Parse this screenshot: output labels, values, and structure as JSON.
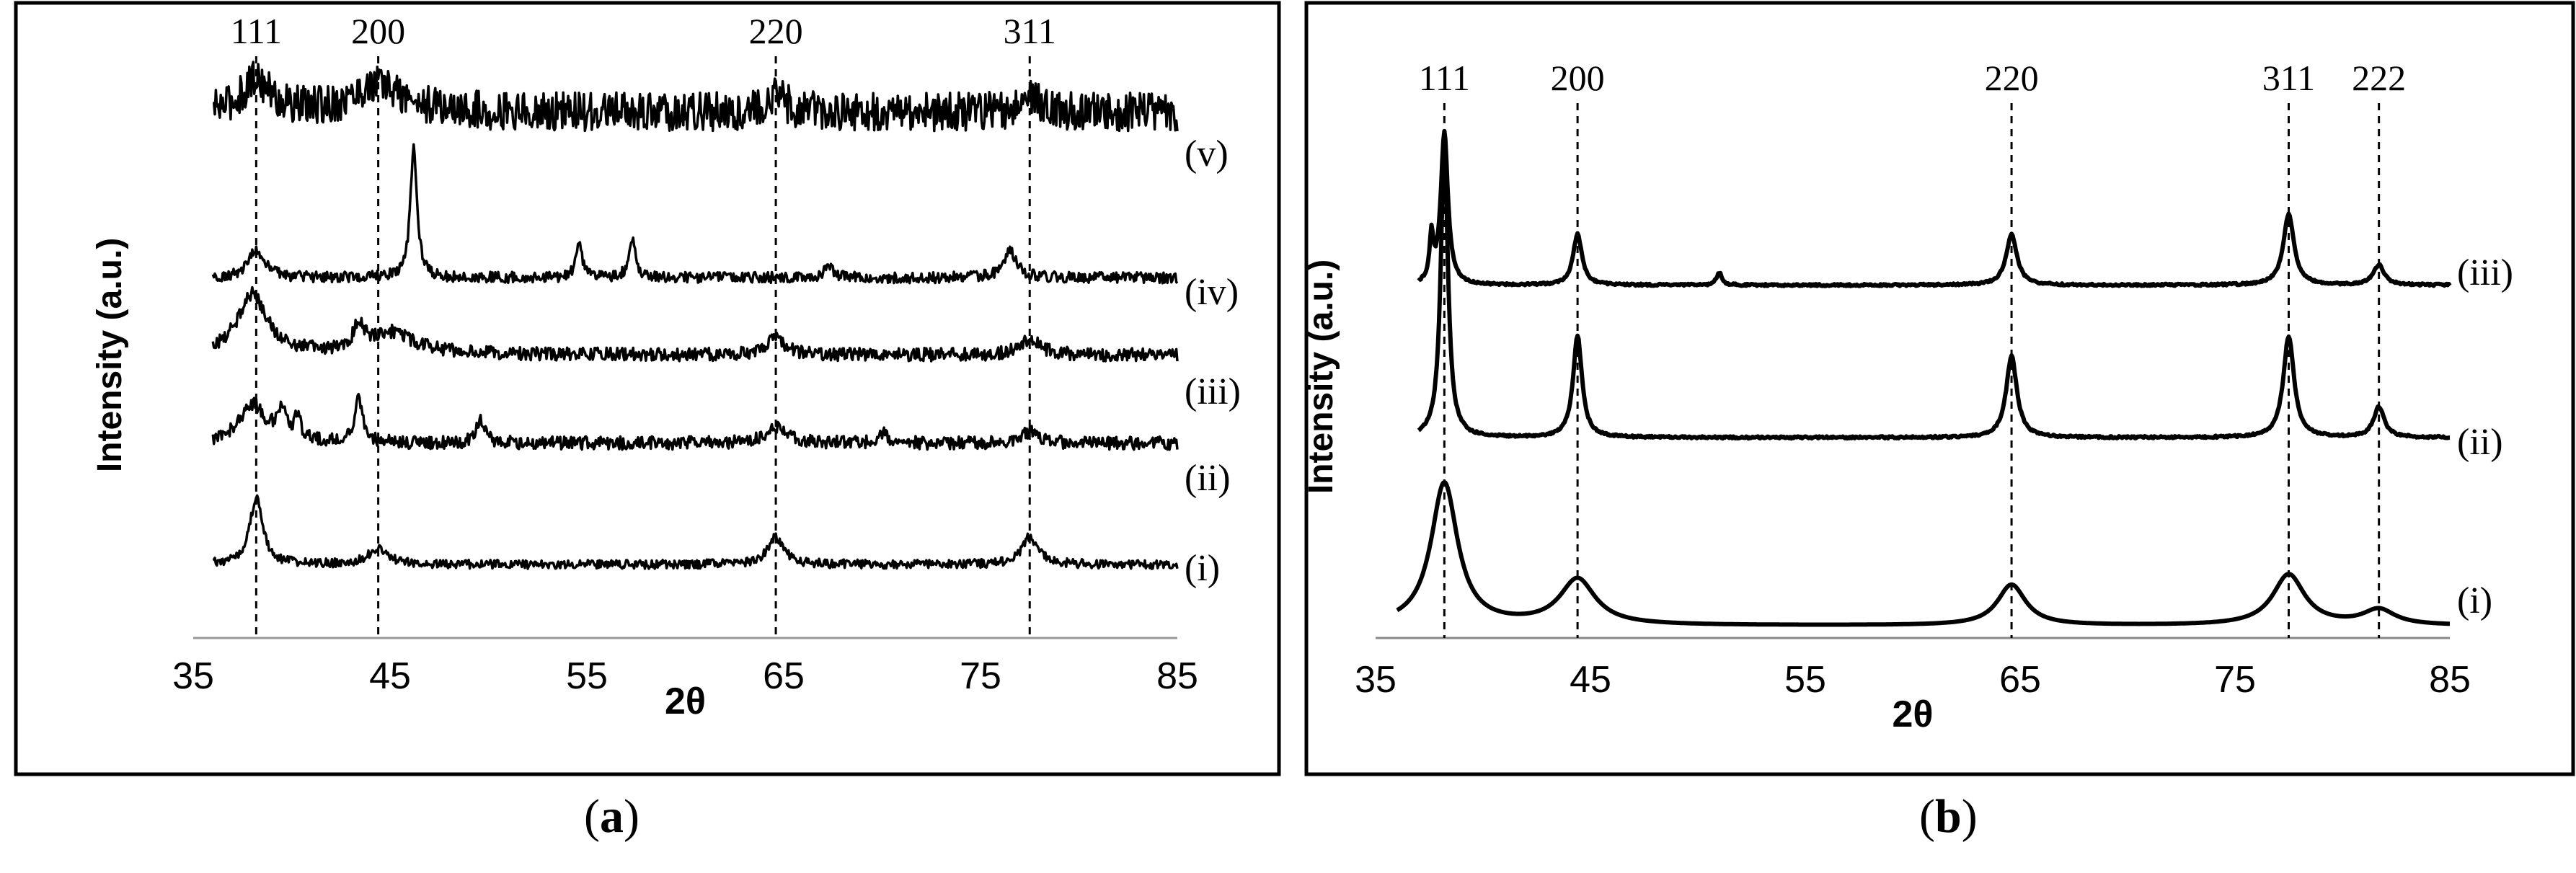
{
  "panels": [
    {
      "id": "a",
      "caption": {
        "open": "(",
        "letter": "a",
        "close": ")"
      },
      "chart_data": {
        "type": "line",
        "title": "",
        "xlabel": "2θ",
        "ylabel": "Intensity (a.u.)",
        "xlim": [
          35,
          85
        ],
        "xticks": [
          "35",
          "45",
          "55",
          "65",
          "75",
          "85"
        ],
        "reference_lines": [
          {
            "label": "111",
            "x": 38.2
          },
          {
            "label": "200",
            "x": 44.4
          },
          {
            "label": "220",
            "x": 64.6
          },
          {
            "label": "311",
            "x": 77.5
          }
        ],
        "series": [
          {
            "name": "(v)",
            "baseline": 0.94,
            "noise": 0.035,
            "x_start": 36.0,
            "peaks": [
              {
                "x": 38.2,
                "h": 0.06,
                "w": 0.8
              },
              {
                "x": 44.4,
                "h": 0.05,
                "w": 1.5
              },
              {
                "x": 64.6,
                "h": 0.03,
                "w": 0.6
              },
              {
                "x": 77.5,
                "h": 0.03,
                "w": 0.6
              }
            ]
          },
          {
            "name": "(iv)",
            "baseline": 0.64,
            "noise": 0.01,
            "x_start": 36.0,
            "peaks": [
              {
                "x": 38.2,
                "h": 0.05,
                "w": 0.5
              },
              {
                "x": 46.2,
                "h": 0.24,
                "w": 0.2
              },
              {
                "x": 54.6,
                "h": 0.06,
                "w": 0.2
              },
              {
                "x": 57.3,
                "h": 0.07,
                "w": 0.2
              },
              {
                "x": 67.3,
                "h": 0.02,
                "w": 0.3
              },
              {
                "x": 76.5,
                "h": 0.05,
                "w": 0.4
              }
            ]
          },
          {
            "name": "(iii)",
            "baseline": 0.5,
            "noise": 0.012,
            "x_start": 36.0,
            "peaks": [
              {
                "x": 38.0,
                "h": 0.11,
                "w": 0.9
              },
              {
                "x": 43.4,
                "h": 0.04,
                "w": 0.3
              },
              {
                "x": 45.0,
                "h": 0.04,
                "w": 1.5
              },
              {
                "x": 64.6,
                "h": 0.03,
                "w": 0.6
              },
              {
                "x": 77.5,
                "h": 0.03,
                "w": 0.6
              }
            ]
          },
          {
            "name": "(ii)",
            "baseline": 0.34,
            "noise": 0.012,
            "x_start": 36.0,
            "peaks": [
              {
                "x": 38.0,
                "h": 0.07,
                "w": 0.8
              },
              {
                "x": 39.5,
                "h": 0.05,
                "w": 0.3
              },
              {
                "x": 40.3,
                "h": 0.04,
                "w": 0.2
              },
              {
                "x": 43.4,
                "h": 0.08,
                "w": 0.25
              },
              {
                "x": 49.6,
                "h": 0.04,
                "w": 0.25
              },
              {
                "x": 64.6,
                "h": 0.03,
                "w": 0.6
              },
              {
                "x": 70.0,
                "h": 0.02,
                "w": 0.3
              },
              {
                "x": 77.5,
                "h": 0.02,
                "w": 0.5
              }
            ]
          },
          {
            "name": "(i)",
            "baseline": 0.12,
            "noise": 0.008,
            "x_start": 36.0,
            "peaks": [
              {
                "x": 38.2,
                "h": 0.12,
                "w": 0.4
              },
              {
                "x": 44.4,
                "h": 0.03,
                "w": 0.6
              },
              {
                "x": 64.6,
                "h": 0.05,
                "w": 0.5
              },
              {
                "x": 77.5,
                "h": 0.05,
                "w": 0.5
              }
            ]
          }
        ]
      }
    },
    {
      "id": "b",
      "caption": {
        "open": "(",
        "letter": "b",
        "close": ")"
      },
      "chart_data": {
        "type": "line",
        "title": "",
        "xlabel": "2θ",
        "ylabel": "Intensity (a.u.)",
        "xlim": [
          35,
          85
        ],
        "xticks": [
          "35",
          "45",
          "55",
          "65",
          "75",
          "85"
        ],
        "reference_lines": [
          {
            "label": "111",
            "x": 38.2
          },
          {
            "label": "200",
            "x": 44.4
          },
          {
            "label": "220",
            "x": 64.6
          },
          {
            "label": "311",
            "x": 77.5
          },
          {
            "label": "222",
            "x": 81.7
          }
        ],
        "series": [
          {
            "name": "(iii)",
            "baseline": 0.68,
            "noise": 0.002,
            "x_start": 37.0,
            "peaks": [
              {
                "x": 37.6,
                "h": 0.09,
                "w": 0.1
              },
              {
                "x": 38.2,
                "h": 0.3,
                "w": 0.2
              },
              {
                "x": 44.4,
                "h": 0.1,
                "w": 0.25
              },
              {
                "x": 51.0,
                "h": 0.025,
                "w": 0.15
              },
              {
                "x": 64.6,
                "h": 0.1,
                "w": 0.3
              },
              {
                "x": 77.5,
                "h": 0.14,
                "w": 0.3
              },
              {
                "x": 81.7,
                "h": 0.04,
                "w": 0.3
              }
            ]
          },
          {
            "name": "(ii)",
            "baseline": 0.38,
            "noise": 0.002,
            "x_start": 37.0,
            "peaks": [
              {
                "x": 38.2,
                "h": 0.58,
                "w": 0.2
              },
              {
                "x": 44.4,
                "h": 0.2,
                "w": 0.25
              },
              {
                "x": 64.6,
                "h": 0.16,
                "w": 0.3
              },
              {
                "x": 77.5,
                "h": 0.2,
                "w": 0.3
              },
              {
                "x": 81.7,
                "h": 0.06,
                "w": 0.3
              }
            ]
          },
          {
            "name": "(i)",
            "baseline": 0.01,
            "noise": 0.0,
            "x_start": 36.0,
            "peaks": [
              {
                "x": 38.2,
                "h": 0.28,
                "w": 0.75
              },
              {
                "x": 44.4,
                "h": 0.09,
                "w": 1.0
              },
              {
                "x": 64.6,
                "h": 0.08,
                "w": 0.8
              },
              {
                "x": 77.5,
                "h": 0.1,
                "w": 0.9
              },
              {
                "x": 81.7,
                "h": 0.03,
                "w": 0.9
              }
            ]
          }
        ]
      }
    }
  ],
  "colors": {
    "line": "#000000",
    "frame": "#000000",
    "axis": "#999999",
    "background": "#ffffff"
  }
}
